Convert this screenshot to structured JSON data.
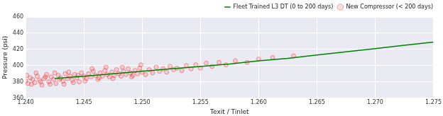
{
  "chart_data": {
    "type": "scatter",
    "x_label": "Texit / Tinlet",
    "y_label": "Pressure (psi)",
    "xlim": [
      1.24,
      1.275
    ],
    "xticks": [
      {
        "value": 1.24,
        "label": "1.240"
      },
      {
        "value": 1.245,
        "label": "1.245"
      },
      {
        "value": 1.25,
        "label": "1.250"
      },
      {
        "value": 1.255,
        "label": "1.255"
      },
      {
        "value": 1.26,
        "label": "1.260"
      },
      {
        "value": 1.265,
        "label": "1.265"
      },
      {
        "value": 1.27,
        "label": "1.270"
      },
      {
        "value": 1.275,
        "label": "1.275"
      }
    ],
    "ylim": [
      360,
      460
    ],
    "yticks": [
      360,
      380,
      400,
      420,
      440,
      460
    ],
    "grid": true,
    "legend": "top right",
    "series": [
      {
        "name": "Fleet Trained L3 DT (0 to 200 days)",
        "color": "green",
        "type": "line",
        "line_style": "solid",
        "x": [
          1.2425,
          1.245,
          1.2475,
          1.25,
          1.2525,
          1.255,
          1.2575,
          1.26,
          1.2625,
          1.265,
          1.2675,
          1.27,
          1.2725,
          1.275
        ],
        "values": [
          384,
          387,
          390,
          393,
          396,
          399,
          402,
          406,
          409,
          413,
          417,
          421,
          425,
          429
        ]
      },
      {
        "name": "New Compressor (< 200 days)",
        "color": "red",
        "type": "scatter",
        "marker": "circle",
        "x": [
          1.24,
          1.2402,
          1.2404,
          1.2406,
          1.2408,
          1.241,
          1.2412,
          1.2414,
          1.2416,
          1.2418,
          1.242,
          1.2422,
          1.2424,
          1.2426,
          1.2428,
          1.243,
          1.2432,
          1.2434,
          1.2436,
          1.2438,
          1.244,
          1.2442,
          1.2444,
          1.2446,
          1.2448,
          1.245,
          1.2452,
          1.2454,
          1.2456,
          1.2458,
          1.246,
          1.2462,
          1.2464,
          1.2466,
          1.2468,
          1.247,
          1.2472,
          1.2474,
          1.2476,
          1.2478,
          1.248,
          1.2482,
          1.2484,
          1.2486,
          1.2488,
          1.249,
          1.2492,
          1.2494,
          1.2496,
          1.2498,
          1.25,
          1.2503,
          1.2506,
          1.2509,
          1.2512,
          1.2515,
          1.2518,
          1.2521,
          1.2524,
          1.2527,
          1.253,
          1.2534,
          1.2538,
          1.2542,
          1.2546,
          1.255,
          1.2555,
          1.256,
          1.2566,
          1.2572,
          1.258,
          1.259,
          1.26,
          1.2612,
          1.263,
          1.2401,
          1.2405,
          1.2409,
          1.2413,
          1.2417,
          1.2421,
          1.2425,
          1.2429,
          1.2433,
          1.2437,
          1.2441,
          1.2445,
          1.2451,
          1.2457,
          1.2463,
          1.2469,
          1.2475,
          1.2483,
          1.2491,
          1.2499
        ],
        "values": [
          381,
          378,
          385,
          383,
          379,
          387,
          382,
          376,
          384,
          389,
          380,
          386,
          383,
          378,
          388,
          385,
          381,
          390,
          384,
          387,
          382,
          389,
          385,
          380,
          391,
          387,
          384,
          390,
          386,
          393,
          388,
          383,
          391,
          387,
          394,
          389,
          386,
          392,
          388,
          395,
          390,
          387,
          393,
          389,
          396,
          391,
          388,
          394,
          390,
          397,
          392,
          389,
          395,
          391,
          398,
          393,
          396,
          392,
          399,
          395,
          397,
          394,
          400,
          396,
          401,
          397,
          403,
          399,
          404,
          401,
          406,
          404,
          408,
          410,
          412,
          388,
          377,
          391,
          380,
          386,
          377,
          391,
          383,
          377,
          392,
          379,
          388,
          381,
          396,
          385,
          398,
          384,
          398,
          386,
          401
        ]
      }
    ]
  }
}
